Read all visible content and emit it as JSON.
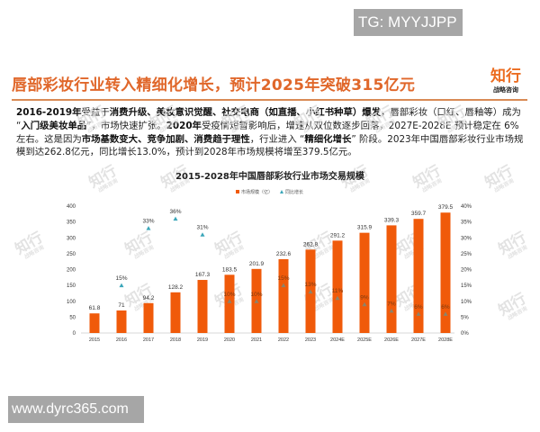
{
  "watermarks": {
    "tg_label": "TG: MYYJJPP",
    "site_label": "www.dyrc365.com",
    "brand_main": "知行",
    "brand_sub": "战略咨询"
  },
  "header": {
    "title": "唇部彩妆行业转入精细化增长，预计2025年突破315亿元",
    "logo_main": "知行",
    "logo_sub": "战略咨询"
  },
  "paragraph": {
    "segments": [
      {
        "text": "2016-2019年",
        "bold": true
      },
      {
        "text": "受益于",
        "bold": false
      },
      {
        "text": "消费升级、美妆意识觉醒、社交电商（如直播、小红书种草）爆发",
        "bold": true
      },
      {
        "text": "，唇部彩妆（口红、唇釉等）成为 “",
        "bold": false
      },
      {
        "text": "入门级美妆单品",
        "bold": true
      },
      {
        "text": "”，市场快速扩张。",
        "bold": false
      },
      {
        "text": "2020年",
        "bold": true
      },
      {
        "text": "受疫情短暂影响后，增速从双位数逐步回落，2027E-2028E 预计稳定在 6% 左右。这是因为",
        "bold": false
      },
      {
        "text": "市场基数变大、竞争加剧、消费趋于理性",
        "bold": true
      },
      {
        "text": "，行业进入 “",
        "bold": false
      },
      {
        "text": "精细化增长",
        "bold": true
      },
      {
        "text": "” 阶段。2023年中国唇部彩妆行业市场规模到达262.8亿元，同比增长13.0%，预计到2028年市场规模将增至379.5亿元。",
        "bold": false
      }
    ]
  },
  "colors": {
    "title": "#e0672a",
    "bar": "#f05a0a",
    "growth_marker": "#3aa6b9",
    "rule": "#d98a55"
  },
  "chart_data": {
    "type": "bar",
    "title": "2015-2028年中国唇部彩妆行业市场交易规模",
    "categories": [
      "2015",
      "2016",
      "2017",
      "2018",
      "2019",
      "2020",
      "2021",
      "2022",
      "2023",
      "2024E",
      "2025E",
      "2026E",
      "2027E",
      "2028E"
    ],
    "series": [
      {
        "name": "市场规模（亿）",
        "type": "bar",
        "axis": "left",
        "values": [
          61.8,
          71,
          94.2,
          128.2,
          167.3,
          183.5,
          201.9,
          232.6,
          262.8,
          291.2,
          315.9,
          339.3,
          359.7,
          379.5
        ],
        "labels": [
          "61.8",
          "71",
          "94.2",
          "128.2",
          "167.3",
          "183.5",
          "201.9",
          "232.6",
          "262.8",
          "291.2",
          "315.9",
          "339.3",
          "359.7",
          "379.5"
        ]
      },
      {
        "name": "同比增长",
        "type": "scatter",
        "axis": "right",
        "values": [
          null,
          15,
          33,
          36,
          31,
          10,
          10,
          15,
          13,
          11,
          9,
          7,
          6,
          6
        ],
        "labels": [
          "",
          "15%",
          "33%",
          "36%",
          "31%",
          "10%",
          "10%",
          "15%",
          "13%",
          "11%",
          "9%",
          "7%",
          "6%",
          "6%"
        ]
      }
    ],
    "y_left": {
      "ticks": [
        "0",
        "50",
        "100",
        "150",
        "200",
        "250",
        "300",
        "350",
        "400"
      ],
      "range": [
        0,
        400
      ]
    },
    "y_right": {
      "ticks": [
        "0%",
        "5%",
        "10%",
        "15%",
        "20%",
        "25%",
        "30%",
        "35%",
        "40%"
      ],
      "range": [
        0,
        40
      ]
    },
    "legend": [
      "市场规模（亿）",
      "同比增长"
    ],
    "legend_position": "top",
    "grid": false,
    "xlabel": "",
    "ylabel": ""
  }
}
